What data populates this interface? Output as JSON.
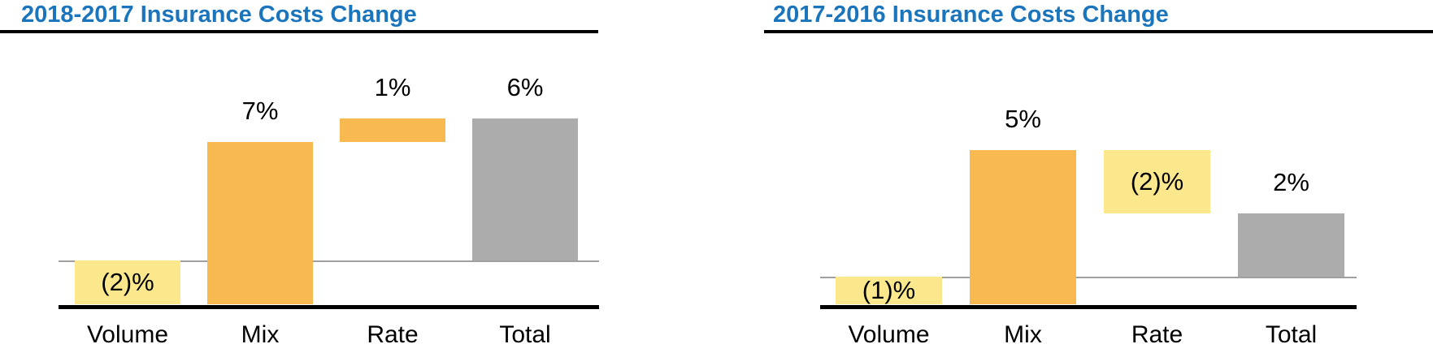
{
  "page": {
    "background": "#ffffff"
  },
  "colors": {
    "title_blue": "#1B75BC",
    "bar_positive_orange": "#F8BA50",
    "bar_negative_yellow": "#FBE88C",
    "bar_total_gray": "#ACACAC",
    "axis_black": "#000000",
    "zero_line_gray": "#A0A0A0",
    "label_black": "#000000"
  },
  "chart_data": [
    {
      "type": "bar",
      "subtype": "waterfall",
      "title": "2018-2017 Insurance Costs Change",
      "categories": [
        "Volume",
        "Mix",
        "Rate",
        "Total"
      ],
      "values": [
        -2,
        7,
        1,
        6
      ],
      "labels": [
        "(2)%",
        "7%",
        "1%",
        "6%"
      ],
      "roles": [
        "change",
        "change",
        "change",
        "total"
      ],
      "unit": "%",
      "ylim": [
        -2,
        6
      ],
      "grid": false,
      "legend": false,
      "xlabel": "",
      "ylabel": ""
    },
    {
      "type": "bar",
      "subtype": "waterfall",
      "title": "2017-2016 Insurance Costs Change",
      "categories": [
        "Volume",
        "Mix",
        "Rate",
        "Total"
      ],
      "values": [
        -1,
        5,
        -2,
        2
      ],
      "labels": [
        "(1)%",
        "5%",
        "(2)%",
        "2%"
      ],
      "roles": [
        "change",
        "change",
        "change",
        "total"
      ],
      "unit": "%",
      "ylim": [
        -1,
        4
      ],
      "grid": false,
      "legend": false,
      "xlabel": "",
      "ylabel": ""
    }
  ]
}
